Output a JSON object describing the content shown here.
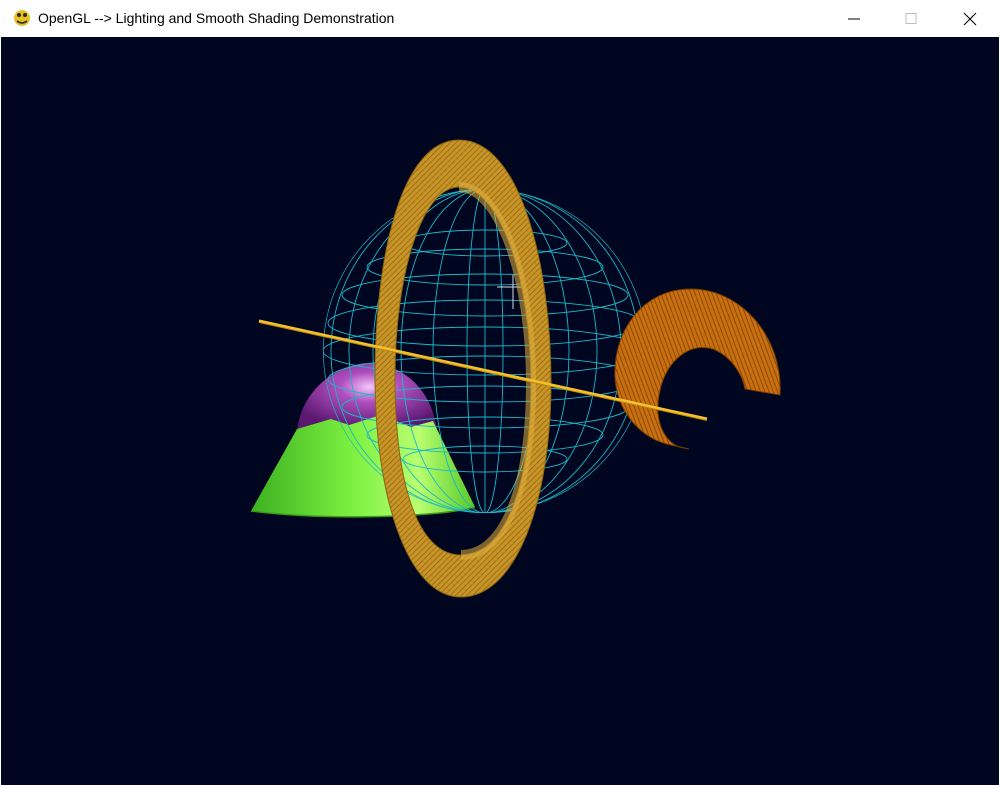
{
  "window": {
    "title": "OpenGL --> Lighting and Smooth Shading Demonstration",
    "app_icon": "pygame-snake-icon",
    "controls": [
      "minimize-icon",
      "maximize-icon",
      "close-icon"
    ]
  },
  "scene": {
    "background_color": "#000520",
    "objects": [
      {
        "name": "wireframe-sphere",
        "color": "#19b8c8"
      },
      {
        "name": "vertical-torus-ring",
        "color": "#d4a02a"
      },
      {
        "name": "c-shaped-torus-segment",
        "color": "#c87010"
      },
      {
        "name": "thin-yellow-rod",
        "color": "#f5c030"
      },
      {
        "name": "green-cone",
        "color": "#7cf040"
      },
      {
        "name": "purple-sphere",
        "color": "#a040b0"
      }
    ]
  }
}
